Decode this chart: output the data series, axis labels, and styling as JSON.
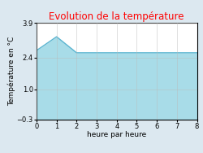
{
  "title": "Evolution de la température",
  "xlabel": "heure par heure",
  "ylabel": "Température en °C",
  "x": [
    0,
    1,
    2,
    3,
    4,
    5,
    6,
    7,
    8
  ],
  "y": [
    2.7,
    3.3,
    2.6,
    2.6,
    2.6,
    2.6,
    2.6,
    2.6,
    2.6
  ],
  "xlim": [
    0,
    8
  ],
  "ylim": [
    -0.3,
    3.9
  ],
  "yticks": [
    -0.3,
    1.0,
    2.4,
    3.9
  ],
  "xticks": [
    0,
    1,
    2,
    3,
    4,
    5,
    6,
    7,
    8
  ],
  "fill_color": "#a8dce8",
  "line_color": "#5ab4d0",
  "background_color": "#dce8f0",
  "plot_bg_color": "#ffffff",
  "title_color": "#ff0000",
  "title_fontsize": 8.5,
  "label_fontsize": 6.5,
  "tick_fontsize": 6
}
